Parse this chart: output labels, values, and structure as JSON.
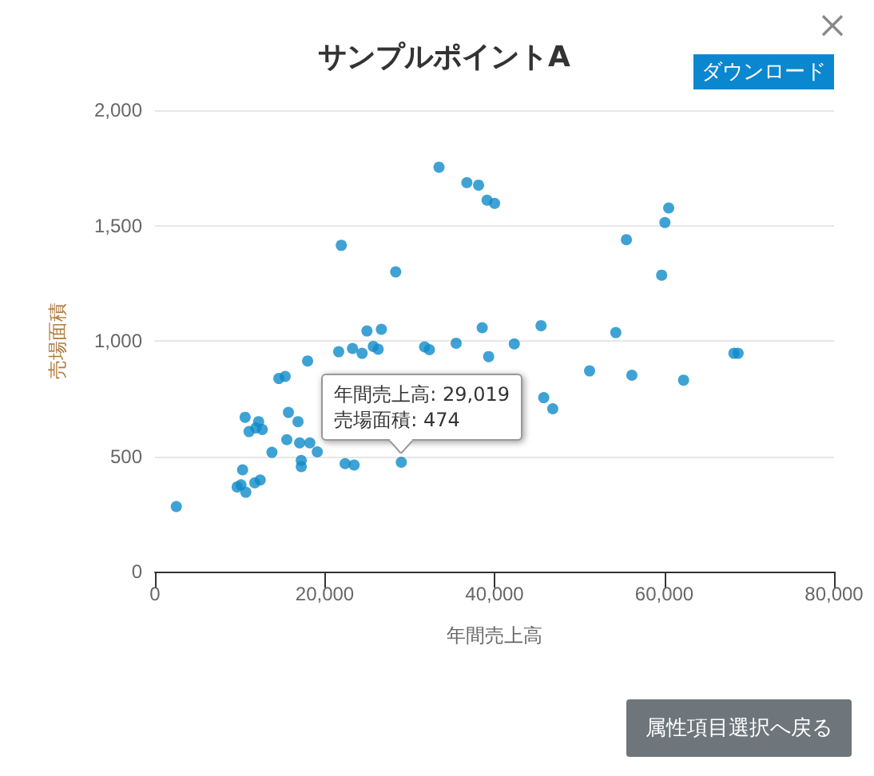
{
  "chart_data": {
    "type": "scatter",
    "title": "サンプルポイントA",
    "xlabel": "年間売上高",
    "ylabel": "売場面積",
    "x": [
      33460,
      36740,
      38120,
      39120,
      40010,
      21950,
      28360,
      24970,
      26670,
      38550,
      21640,
      23270,
      24400,
      25720,
      26290,
      31760,
      32330,
      35480,
      39310,
      17980,
      14590,
      15340,
      10620,
      11080,
      11890,
      12210,
      12640,
      15720,
      15530,
      17040,
      16850,
      18240,
      19120,
      13780,
      17230,
      17230,
      22400,
      23460,
      29019,
      10320,
      10130,
      9680,
      10700,
      11760,
      12400,
      2510,
      60520,
      60070,
      55540,
      59690,
      45480,
      42330,
      54290,
      68200,
      68700,
      51200,
      56180,
      62270,
      45800,
      46860
    ],
    "values": [
      1753,
      1686,
      1675,
      1610,
      1596,
      1414,
      1299,
      1043,
      1050,
      1057,
      953,
      967,
      946,
      976,
      964,
      974,
      962,
      990,
      932,
      913,
      837,
      846,
      669,
      607,
      623,
      650,
      616,
      690,
      572,
      558,
      650,
      558,
      519,
      517,
      482,
      455,
      468,
      462,
      474,
      441,
      376,
      367,
      344,
      385,
      397,
      282,
      1576,
      1513,
      1439,
      1285,
      1066,
      987,
      1036,
      946,
      946,
      870,
      851,
      830,
      754,
      706
    ],
    "color": "#0f8bc9",
    "marker": "circle",
    "grid": "y",
    "xlim": [
      0,
      80000
    ],
    "xticks": [
      0,
      {
        "value": 20000,
        "label": "20,000"
      },
      {
        "value": 40000,
        "label": "40,000"
      },
      {
        "value": 60000,
        "label": "60,000"
      },
      {
        "value": 80000,
        "label": "80,000"
      }
    ],
    "ylim": [
      0,
      2000
    ],
    "yticks": [
      0,
      500,
      {
        "value": 1000,
        "label": "1,000"
      },
      {
        "value": 1500,
        "label": "1,500"
      },
      {
        "value": 2000,
        "label": "2,000"
      }
    ],
    "annotations": [
      "ダウンロード",
      "属性項目選択へ戻る",
      {
        "text": "年間売上高: 29,019\n売場面積: 474",
        "x": 29019,
        "y": 474
      }
    ]
  }
}
